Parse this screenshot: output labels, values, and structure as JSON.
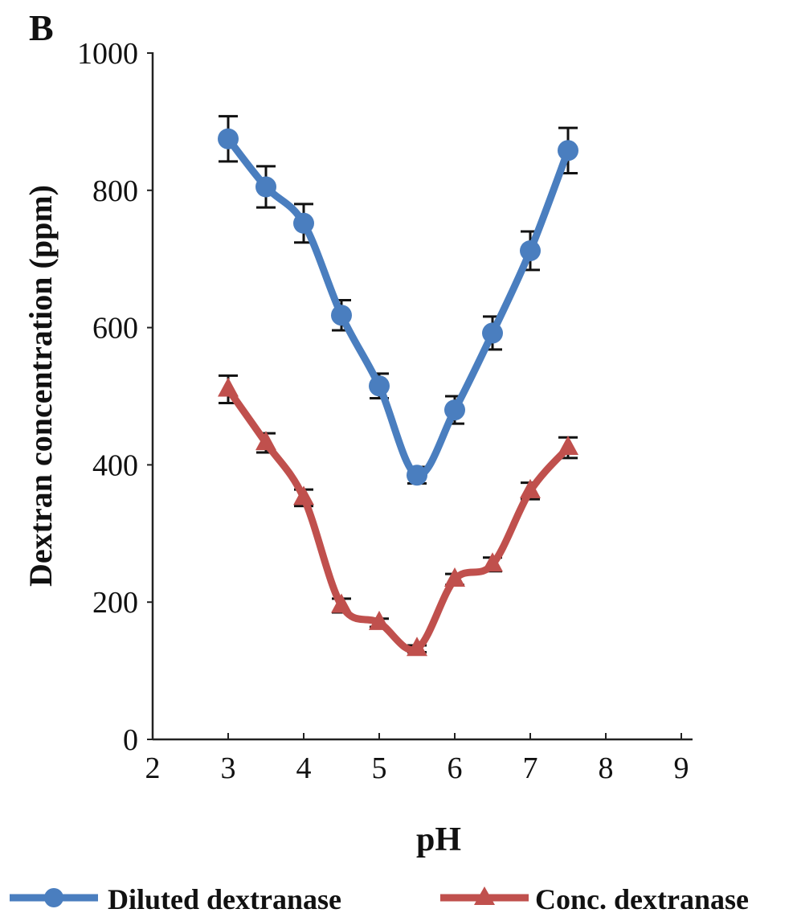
{
  "chart_data": {
    "type": "line",
    "panel_label": "B",
    "title": "",
    "xlabel": "pH",
    "ylabel": "Dextran  concentration (ppm)",
    "xlim": [
      2,
      9
    ],
    "ylim": [
      0,
      1000
    ],
    "x_ticks": [
      2,
      3,
      4,
      5,
      6,
      7,
      8,
      9
    ],
    "y_ticks": [
      0,
      200,
      400,
      600,
      800,
      1000
    ],
    "grid": false,
    "legend_position": "bottom",
    "x": [
      3,
      3.5,
      4,
      4.5,
      5,
      5.5,
      6,
      6.5,
      7,
      7.5
    ],
    "series": [
      {
        "name": "Diluted dextranase",
        "color": "#4a7ebf",
        "marker": "circle",
        "values": [
          875,
          805,
          752,
          618,
          515,
          385,
          480,
          592,
          712,
          858
        ],
        "errors": [
          33,
          30,
          28,
          22,
          18,
          12,
          20,
          24,
          28,
          33
        ]
      },
      {
        "name": "Conc. dextranase",
        "color": "#c0504d",
        "marker": "triangle",
        "values": [
          510,
          432,
          352,
          195,
          170,
          132,
          233,
          255,
          362,
          425
        ],
        "errors": [
          20,
          14,
          12,
          10,
          6,
          5,
          8,
          10,
          12,
          15
        ]
      }
    ]
  }
}
